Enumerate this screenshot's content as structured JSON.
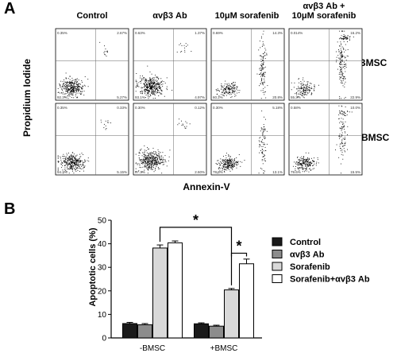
{
  "panelA": {
    "letter": "A",
    "columns": [
      "Control",
      "αvβ3 Ab",
      "10μM sorafenib",
      "αvβ3 Ab +\n10μM sorafenib"
    ],
    "rows": [
      "-BMSC",
      "+BMSC"
    ],
    "ylabel": "Propidium Iodide",
    "xlabel": "Annexin-V",
    "quadrants": [
      [
        [
          "0.35%",
          "2.67%",
          "92.3%",
          "5.27%"
        ],
        [
          "0.63%",
          "1.37%",
          "93.1%",
          "4.97%"
        ],
        [
          "0.69%",
          "14.3%",
          "60.2%",
          "20.8%"
        ],
        [
          "0.014%",
          "16.2%",
          "55.3%",
          "22.9%"
        ]
      ],
      [
        [
          "0.35%",
          "0.33%",
          "94.3%",
          "5.15%"
        ],
        [
          "0.30%",
          "0.12%",
          "97.3%",
          "2.60%"
        ],
        [
          "0.30%",
          "5.18%",
          "78.5%",
          "13.1%"
        ],
        [
          "0.58%",
          "10.0%",
          "79.6%",
          "15.5%"
        ]
      ]
    ]
  },
  "chart_data": {
    "type": "bar",
    "panel_letter": "B",
    "categories": [
      "-BMSC",
      "+BMSC"
    ],
    "series": [
      {
        "name": "Control",
        "values": [
          6.1,
          6.0
        ],
        "errors": [
          0.5,
          0.4
        ],
        "color": "#1a1a1a"
      },
      {
        "name": "αvβ3 Ab",
        "values": [
          5.6,
          5.0
        ],
        "errors": [
          0.5,
          0.4
        ],
        "color": "#8c8c8c"
      },
      {
        "name": "Sorafenib",
        "values": [
          38.2,
          20.4
        ],
        "errors": [
          1.3,
          0.6
        ],
        "color": "#d9d9d9"
      },
      {
        "name": "Sorafenib+αvβ3 Ab",
        "values": [
          40.4,
          31.5
        ],
        "errors": [
          0.8,
          2.0
        ],
        "color": "#ffffff"
      }
    ],
    "ylabel": "Apoptotic cells (%)",
    "xlabel": "",
    "ylim": [
      0,
      50
    ],
    "yticks": [
      "0",
      "10",
      "20",
      "30",
      "40",
      "50"
    ],
    "legend_position": "right",
    "significance": [
      {
        "label": "*",
        "from": "-BMSC Sorafenib",
        "to": "+BMSC Sorafenib"
      },
      {
        "label": "*",
        "from": "+BMSC Sorafenib",
        "to": "+BMSC Sorafenib+αvβ3 Ab"
      }
    ]
  }
}
